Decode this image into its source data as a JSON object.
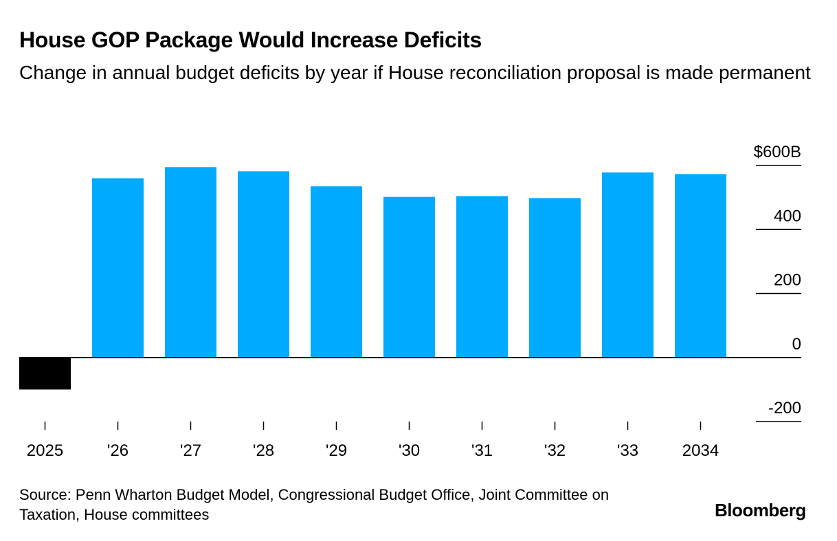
{
  "title": "House GOP Package Would Increase Deficits",
  "subtitle": "Change in annual budget deficits by year if House reconciliation proposal is made permanent",
  "source": "Source: Penn Wharton Budget Model, Congressional Budget Office, Joint Committee on Taxation, House committees",
  "brand": "Bloomberg",
  "colors": {
    "positive": "#00AAFF",
    "negative": "#000000",
    "axis": "#000000"
  },
  "chart_data": {
    "type": "bar",
    "title": "House GOP Package Would Increase Deficits",
    "subtitle": "Change in annual budget deficits by year if House reconciliation proposal is made permanent",
    "xlabel": "",
    "ylabel": "",
    "categories": [
      "2025",
      "'26",
      "'27",
      "'28",
      "'29",
      "'30",
      "'31",
      "'32",
      "'33",
      "2034"
    ],
    "values": [
      -100,
      560,
      595,
      582,
      535,
      502,
      504,
      498,
      578,
      573
    ],
    "ylim": [
      -200,
      600
    ],
    "yticks": [
      600,
      400,
      200,
      0,
      -200
    ],
    "ytick_labels": [
      "$600B",
      "400",
      "200",
      "0",
      "-200"
    ],
    "grid": false,
    "legend": "none"
  }
}
